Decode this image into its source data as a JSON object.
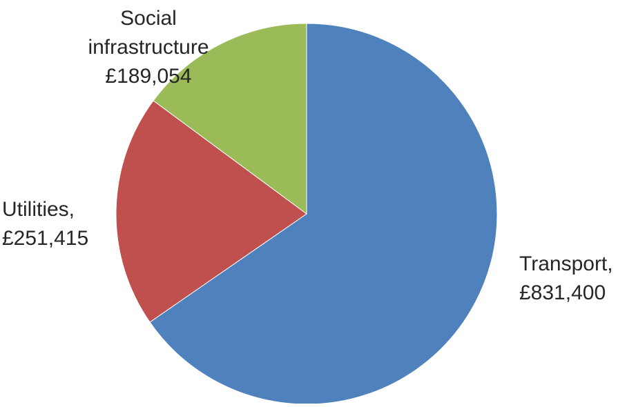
{
  "chart_data": {
    "type": "pie",
    "title": "",
    "slices": [
      {
        "label": "Transport",
        "value": 831400,
        "value_text": "£831,400",
        "color": "#4F81BD"
      },
      {
        "label": "Utilities",
        "value": 251415,
        "value_text": "£251,415",
        "color": "#C0504D"
      },
      {
        "label": "Social infrastructure",
        "value": 189054,
        "value_text": "£189,054",
        "color": "#9BBB59"
      }
    ],
    "start_angle_deg": 0,
    "direction": "clockwise",
    "legend": "none",
    "data_labels": {
      "social": [
        "Social",
        "infrastructure",
        "£189,054"
      ],
      "utilities": [
        "Utilities,",
        "£251,415"
      ],
      "transport": [
        "Transport,",
        "£831,400"
      ]
    }
  }
}
